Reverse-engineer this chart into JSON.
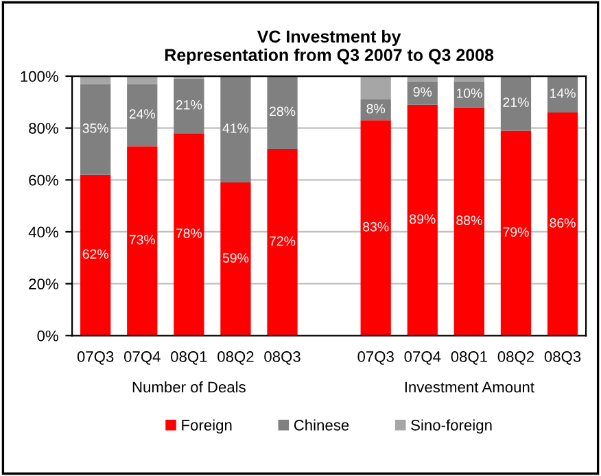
{
  "chart_data": {
    "type": "bar",
    "stacked": true,
    "title": "VC Investment by\nRepresentation from Q3 2007 to Q3 2008",
    "categories": [
      "07Q3",
      "07Q4",
      "08Q1",
      "08Q2",
      "08Q3",
      null,
      "07Q3",
      "07Q4",
      "08Q1",
      "08Q2",
      "08Q3"
    ],
    "series": [
      {
        "name": "Foreign",
        "color": "#ff0000",
        "values": [
          62,
          73,
          78,
          59,
          72,
          null,
          83,
          89,
          88,
          79,
          86
        ],
        "value_labels": [
          "62%",
          "73%",
          "78%",
          "59%",
          "72%",
          null,
          "83%",
          "89%",
          "88%",
          "79%",
          "86%"
        ]
      },
      {
        "name": "Chinese",
        "color": "#808080",
        "values": [
          35,
          24,
          21,
          41,
          28,
          null,
          8,
          9,
          10,
          21,
          14
        ],
        "value_labels": [
          "35%",
          "24%",
          "21%",
          "41%",
          "28%",
          null,
          "8%",
          "9%",
          "10%",
          "21%",
          "14%"
        ]
      },
      {
        "name": "Sino-foreign",
        "color": "#a6a6a6",
        "values": [
          3,
          3,
          1,
          0,
          0,
          null,
          9,
          2,
          2,
          0,
          0
        ]
      }
    ],
    "ylim": [
      0,
      100
    ],
    "yticks": [
      {
        "value": 0,
        "label": "0%"
      },
      {
        "value": 20,
        "label": "20%"
      },
      {
        "value": 40,
        "label": "40%"
      },
      {
        "value": 60,
        "label": "60%"
      },
      {
        "value": 80,
        "label": "80%"
      },
      {
        "value": 100,
        "label": "100%"
      }
    ],
    "grid": "y",
    "legend": "bottom",
    "annotations": [
      "Number of Deals",
      "Investment Amount"
    ]
  }
}
